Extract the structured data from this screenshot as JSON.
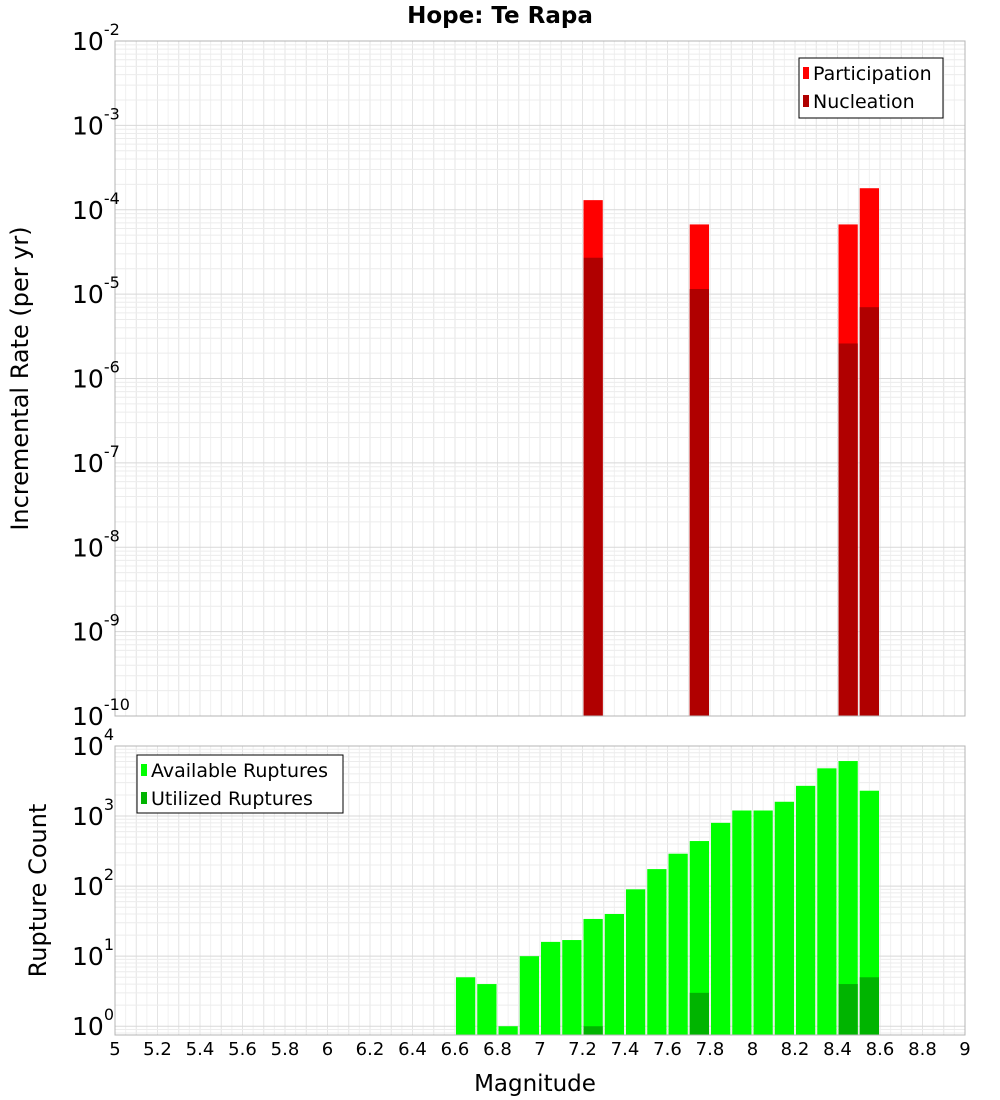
{
  "title": "Hope: Te Rapa",
  "chart_data": [
    {
      "type": "bar",
      "ylabel": "Incremental Rate (per yr)",
      "xlabel": "",
      "xlim": [
        5,
        9
      ],
      "yscale": "log",
      "ylim": [
        1e-10,
        0.01
      ],
      "ytick_exponents": [
        "-10",
        "-9",
        "-8",
        "-7",
        "-6",
        "-5",
        "-4",
        "-3",
        "-2"
      ],
      "bar_width": 0.1,
      "legend_position": "top-right",
      "series": [
        {
          "name": "Participation",
          "color": "#ff0000",
          "x": [
            7.25,
            7.75,
            8.45,
            8.55
          ],
          "values": [
            0.00013,
            6.7e-05,
            6.7e-05,
            0.00018
          ]
        },
        {
          "name": "Nucleation",
          "color": "#b00000",
          "x": [
            7.25,
            7.75,
            8.45,
            8.55
          ],
          "values": [
            2.7e-05,
            1.15e-05,
            2.6e-06,
            7e-06
          ]
        }
      ]
    },
    {
      "type": "bar",
      "ylabel": "Rupture Count",
      "xlabel": "Magnitude",
      "xlim": [
        5,
        9
      ],
      "yscale": "log",
      "ylim": [
        0.75,
        10000
      ],
      "ytick_exponents": [
        "0",
        "1",
        "2",
        "3",
        "4"
      ],
      "xticks": [
        "5",
        "5.2",
        "5.4",
        "5.6",
        "5.8",
        "6",
        "6.2",
        "6.4",
        "6.6",
        "6.8",
        "7",
        "7.2",
        "7.4",
        "7.6",
        "7.8",
        "8",
        "8.2",
        "8.4",
        "8.6",
        "8.8",
        "9"
      ],
      "bar_width": 0.1,
      "legend_position": "top-left",
      "series": [
        {
          "name": "Available Ruptures",
          "color": "#00ff00",
          "x": [
            6.65,
            6.75,
            6.85,
            6.95,
            7.05,
            7.15,
            7.25,
            7.35,
            7.45,
            7.55,
            7.65,
            7.75,
            7.85,
            7.95,
            8.05,
            8.15,
            8.25,
            8.35,
            8.45,
            8.55
          ],
          "values": [
            5,
            4,
            1,
            10,
            16,
            17,
            34,
            40,
            90,
            175,
            290,
            440,
            800,
            1200,
            1200,
            1600,
            2700,
            4800,
            6100,
            2300
          ]
        },
        {
          "name": "Utilized Ruptures",
          "color": "#00b400",
          "x": [
            7.25,
            7.75,
            8.45,
            8.55
          ],
          "values": [
            1,
            3,
            4,
            5
          ]
        }
      ]
    }
  ]
}
